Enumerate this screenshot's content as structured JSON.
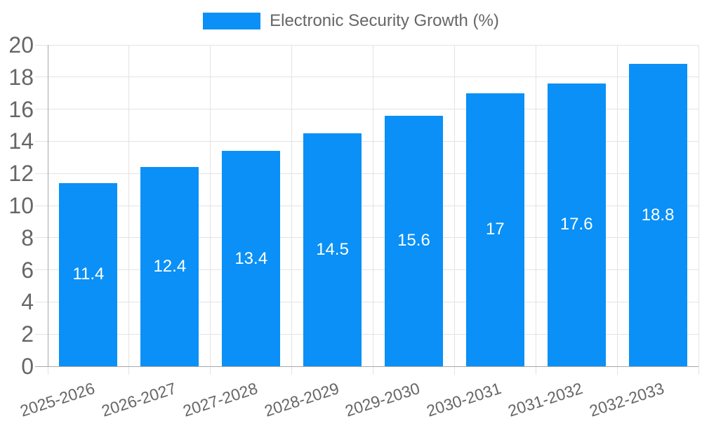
{
  "chart_data": {
    "type": "bar",
    "title": "Electronic Security Growth (%)",
    "legend": {
      "position": "top",
      "label": "Electronic Security Growth (%)"
    },
    "categories": [
      "2025-2026",
      "2026-2027",
      "2027-2028",
      "2028-2029",
      "2029-2030",
      "2030-2031",
      "2031-2032",
      "2032-2033"
    ],
    "series": [
      {
        "name": "Electronic Security Growth (%)",
        "values": [
          11.4,
          12.4,
          13.4,
          14.5,
          15.6,
          17,
          17.6,
          18.8
        ],
        "value_labels": [
          "11.4",
          "12.4",
          "13.4",
          "14.5",
          "15.6",
          "17",
          "17.6",
          "18.8"
        ]
      }
    ],
    "xlabel": "",
    "ylabel": "",
    "ylim": [
      0,
      20
    ],
    "ytick_step": 2,
    "ytick_labels": [
      "0",
      "2",
      "4",
      "6",
      "8",
      "10",
      "12",
      "14",
      "16",
      "18",
      "20"
    ],
    "grid": true,
    "colors": {
      "bar": "#0a90f6",
      "grid": "#e3e3e3",
      "axis": "#a8a8a8",
      "tick_text": "#666666",
      "legend_text": "#666666",
      "value_text": "#ffffff",
      "background": "#ffffff"
    }
  }
}
